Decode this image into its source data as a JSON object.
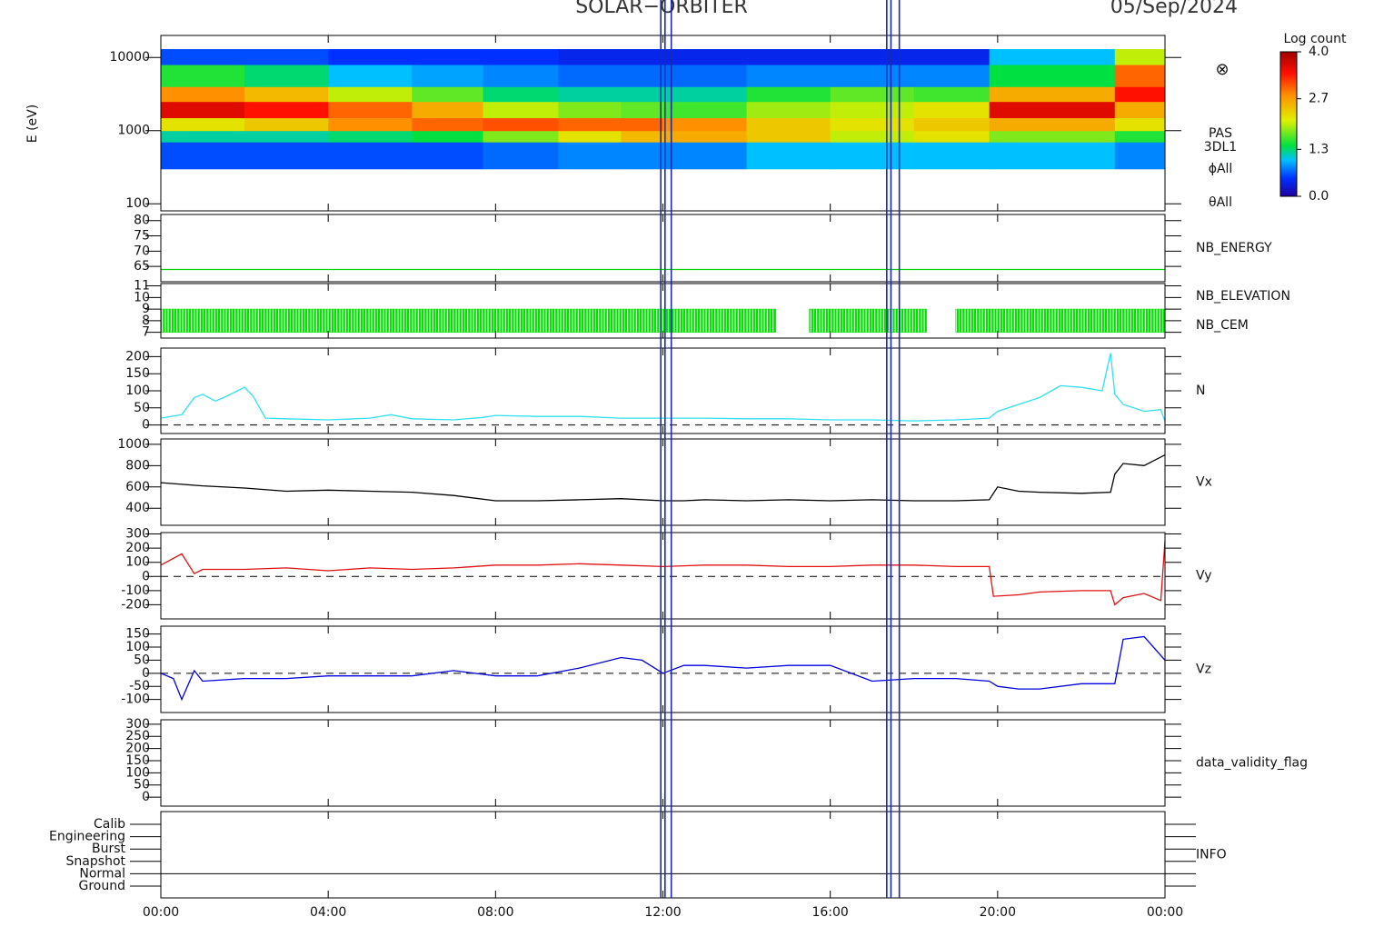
{
  "header": {
    "title": "SOLAR−ORBITER",
    "date": "05/Sep/2024",
    "markers": [
      11.95,
      12.05,
      12.2,
      17.35,
      17.45,
      17.65
    ]
  },
  "chart_data": [
    {
      "type": "heatmap",
      "ylabel": "E (eV)",
      "log": true,
      "xlim": [
        0,
        24
      ],
      "ylim": [
        80,
        20000
      ],
      "yticks": [
        100,
        1000,
        10000
      ],
      "x": [
        0,
        2,
        4,
        6,
        7.7,
        9.5,
        11,
        12,
        14,
        16,
        18,
        19.8,
        22.8,
        24
      ],
      "y": [
        300,
        700,
        1000,
        1500,
        2500,
        4000,
        8000,
        13000
      ],
      "values": [
        [
          0.6,
          1.2,
          2.2,
          3.6,
          2.8,
          1.5,
          0.6
        ],
        [
          0.6,
          1.2,
          2.4,
          3.4,
          2.5,
          1.3,
          0.6
        ],
        [
          0.6,
          1.3,
          2.8,
          3.0,
          2.0,
          1.0,
          0.5
        ],
        [
          0.6,
          1.4,
          3.0,
          2.6,
          1.7,
          0.9,
          0.5
        ],
        [
          0.7,
          1.8,
          3.1,
          2.0,
          1.3,
          0.8,
          0.5
        ],
        [
          0.8,
          2.2,
          3.0,
          1.8,
          1.2,
          0.7,
          0.4
        ],
        [
          0.8,
          2.5,
          3.0,
          1.7,
          1.2,
          0.7,
          0.4
        ],
        [
          0.8,
          2.6,
          2.8,
          1.6,
          1.2,
          0.7,
          0.4
        ],
        [
          1.0,
          2.4,
          2.4,
          1.9,
          1.5,
          0.8,
          0.4
        ],
        [
          1.0,
          2.0,
          2.2,
          2.0,
          1.7,
          0.8,
          0.4
        ],
        [
          1.0,
          2.2,
          2.4,
          2.2,
          1.6,
          0.8,
          0.4
        ],
        [
          1.0,
          1.8,
          2.6,
          3.6,
          2.6,
          1.4,
          1.0
        ],
        [
          0.8,
          1.5,
          2.2,
          2.6,
          3.4,
          3.0,
          2.0
        ]
      ],
      "zlim": [
        0,
        4
      ],
      "colorbar_title": "Log count",
      "colorbar_ticks": [
        {
          "value": 0,
          "label": "0.0"
        },
        1.3,
        2.7,
        {
          "value": 4,
          "label": "4.0"
        }
      ],
      "labels": [
        "PAS",
        "3DL1",
        "ϕAll",
        "θAll"
      ],
      "symbol": "⊗"
    },
    {
      "type": "line",
      "xlim": [
        0,
        24
      ],
      "ylim": [
        60,
        82
      ],
      "yticks": [
        65,
        70,
        75,
        80
      ],
      "series": [
        {
          "name": "NB_ENERGY",
          "color": "#00d000",
          "x": [
            0,
            24
          ],
          "values": [
            64,
            64
          ]
        }
      ]
    },
    {
      "type": "band",
      "xlim": [
        0,
        24
      ],
      "ylim": [
        6.5,
        11.2
      ],
      "yticks": [
        7,
        8,
        9,
        10,
        11
      ],
      "base": 7,
      "series": [
        {
          "name": "NB_ELEVATION",
          "color": "#00e000",
          "starts": [
            0,
            15.5,
            19
          ],
          "ends": [
            14.7,
            18.3,
            24
          ],
          "values": [
            9,
            9,
            9
          ]
        },
        {
          "name": "NB_CEM",
          "color": "#1818b0",
          "starts": [],
          "ends": [],
          "values": []
        }
      ]
    },
    {
      "type": "line",
      "xlim": [
        0,
        24
      ],
      "ylim": [
        -25,
        225
      ],
      "yticks": [
        0,
        50,
        100,
        150,
        200
      ],
      "zero_line": true,
      "series": [
        {
          "name": "N",
          "color": "#30e0f0",
          "x": [
            0,
            0.5,
            0.8,
            1,
            1.3,
            1.5,
            2,
            2.2,
            2.5,
            3,
            4,
            5,
            5.5,
            6,
            7,
            7.7,
            8,
            9,
            10,
            11,
            12,
            13,
            14,
            15,
            16,
            17,
            18,
            19,
            19.8,
            20,
            20.5,
            21,
            21.5,
            22,
            22.5,
            22.7,
            22.8,
            23,
            23.5,
            23.9,
            24
          ],
          "values": [
            20,
            30,
            80,
            90,
            70,
            80,
            110,
            85,
            20,
            18,
            15,
            20,
            30,
            18,
            15,
            22,
            28,
            25,
            25,
            20,
            20,
            20,
            18,
            18,
            15,
            15,
            12,
            15,
            20,
            40,
            60,
            80,
            115,
            110,
            100,
            210,
            90,
            60,
            40,
            45,
            10
          ]
        }
      ]
    },
    {
      "type": "line",
      "xlim": [
        0,
        24
      ],
      "ylim": [
        240,
        1050
      ],
      "yticks": [
        400,
        600,
        800,
        1000
      ],
      "series": [
        {
          "name": "Vx",
          "color": "#000000",
          "x": [
            0,
            1,
            2,
            3,
            4,
            5,
            6,
            7,
            8,
            9,
            10,
            11,
            12,
            12.5,
            13,
            14,
            15,
            16,
            17,
            18,
            19,
            19.8,
            20,
            20.5,
            21,
            22,
            22.7,
            22.8,
            23,
            23.5,
            24
          ],
          "values": [
            640,
            610,
            590,
            560,
            570,
            560,
            550,
            520,
            470,
            470,
            480,
            490,
            470,
            470,
            480,
            470,
            480,
            470,
            480,
            470,
            470,
            480,
            600,
            560,
            550,
            540,
            550,
            720,
            820,
            800,
            900
          ]
        }
      ]
    },
    {
      "type": "line",
      "xlim": [
        0,
        24
      ],
      "ylim": [
        -300,
        310
      ],
      "yticks": [
        -200,
        -100,
        0,
        100,
        200,
        300
      ],
      "zero_line": true,
      "series": [
        {
          "name": "Vy",
          "color": "#e01010",
          "x": [
            0,
            0.5,
            0.8,
            1,
            2,
            3,
            4,
            5,
            6,
            7,
            8,
            9,
            10,
            11,
            12,
            13,
            14,
            15,
            16,
            17,
            18,
            19,
            19.8,
            19.9,
            20.5,
            21,
            22,
            22.7,
            22.8,
            23,
            23.5,
            23.9,
            24
          ],
          "values": [
            80,
            160,
            20,
            50,
            50,
            60,
            40,
            60,
            50,
            60,
            80,
            80,
            90,
            80,
            70,
            80,
            80,
            70,
            70,
            80,
            80,
            70,
            70,
            -140,
            -130,
            -110,
            -100,
            -100,
            -200,
            -150,
            -120,
            -170,
            250
          ]
        }
      ]
    },
    {
      "type": "line",
      "xlim": [
        0,
        24
      ],
      "ylim": [
        -150,
        180
      ],
      "yticks": [
        -100,
        -50,
        0,
        50,
        100,
        150
      ],
      "zero_line": true,
      "series": [
        {
          "name": "Vz",
          "color": "#0000e0",
          "x": [
            0,
            0.3,
            0.5,
            0.8,
            1,
            2,
            3,
            4,
            5,
            6,
            7,
            8,
            9,
            10,
            11,
            11.5,
            12,
            12.5,
            13,
            14,
            15,
            16,
            17,
            18,
            19,
            19.8,
            20,
            20.5,
            21,
            22,
            22.8,
            23,
            23.5,
            24
          ],
          "values": [
            0,
            -20,
            -100,
            10,
            -30,
            -20,
            -20,
            -10,
            -10,
            -10,
            10,
            -10,
            -10,
            20,
            60,
            50,
            0,
            30,
            30,
            20,
            30,
            30,
            -30,
            -20,
            -20,
            -30,
            -50,
            -60,
            -60,
            -40,
            -40,
            130,
            140,
            50
          ]
        }
      ]
    },
    {
      "type": "line",
      "xlim": [
        0,
        24
      ],
      "ylim": [
        -37,
        318
      ],
      "yticks": [
        0,
        50,
        100,
        150,
        200,
        250,
        300
      ],
      "series": [
        {
          "name": "data_validity_flag",
          "color": "#000000",
          "x": [],
          "values": []
        }
      ]
    },
    {
      "type": "state",
      "xlim": [
        0,
        24
      ],
      "ycategories": [
        "Calib",
        "Engineering",
        "Burst",
        "Snapshot",
        "Normal",
        "Ground"
      ],
      "xticks": [
        {
          "value": 0,
          "label": "00:00"
        },
        {
          "value": 4,
          "label": "04:00"
        },
        {
          "value": 8,
          "label": "08:00"
        },
        {
          "value": 12,
          "label": "12:00"
        },
        {
          "value": 16,
          "label": "16:00"
        },
        {
          "value": 20,
          "label": "20:00"
        },
        {
          "value": 24,
          "label": "00:00"
        }
      ],
      "series": [
        {
          "name": "INFO",
          "color": "#000000",
          "x": [
            0,
            24
          ],
          "values": [
            "Normal",
            "Normal"
          ]
        }
      ]
    }
  ]
}
